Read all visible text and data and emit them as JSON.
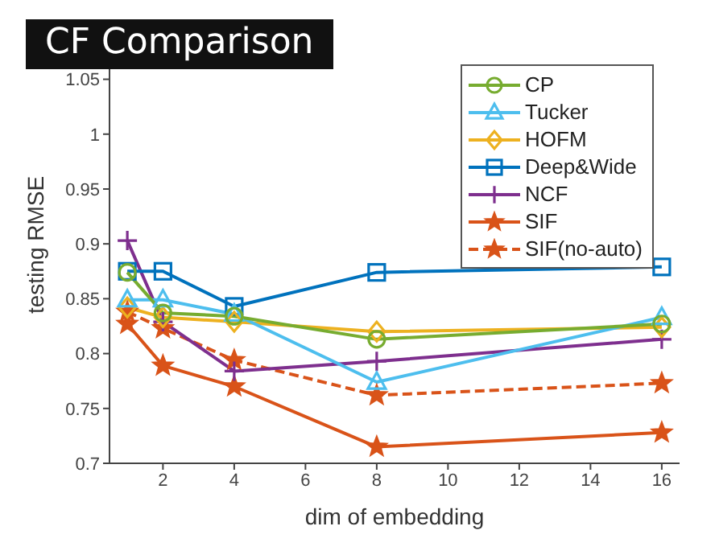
{
  "chart_data": {
    "type": "line",
    "title": "CF Comparison",
    "xlabel": "dim of embedding",
    "ylabel": "testing RMSE",
    "x": [
      1,
      2,
      4,
      8,
      16
    ],
    "xlim": [
      0.5,
      16.5
    ],
    "xticks": [
      2,
      4,
      6,
      8,
      10,
      12,
      14,
      16
    ],
    "ylim": [
      0.7,
      1.09
    ],
    "yticks": [
      0.7,
      0.75,
      0.8,
      0.85,
      0.9,
      0.95,
      1,
      1.05
    ],
    "grid": false,
    "legend": "top right",
    "series": [
      {
        "name": "CP",
        "color": "#77ac30",
        "marker": "circle",
        "line_style": "solid",
        "values": [
          0.874,
          0.837,
          0.834,
          0.813,
          0.827
        ]
      },
      {
        "name": "Tucker",
        "color": "#4dbeee",
        "marker": "triangle",
        "line_style": "solid",
        "values": [
          0.849,
          0.849,
          0.836,
          0.774,
          0.833
        ]
      },
      {
        "name": "HOFM",
        "color": "#edb120",
        "marker": "diamond",
        "line_style": "solid",
        "values": [
          0.842,
          0.833,
          0.829,
          0.82,
          0.824
        ]
      },
      {
        "name": "Deep&Wide",
        "color": "#0072bd",
        "marker": "square",
        "line_style": "solid",
        "values": [
          0.875,
          0.875,
          0.843,
          0.874,
          0.879
        ]
      },
      {
        "name": "NCF",
        "color": "#7e2f8e",
        "marker": "cross",
        "line_style": "solid",
        "values": [
          0.903,
          0.829,
          0.784,
          0.793,
          0.813
        ]
      },
      {
        "name": "SIF",
        "color": "#d95319",
        "marker": "star",
        "line_style": "solid",
        "values": [
          0.827,
          0.789,
          0.77,
          0.715,
          0.728
        ]
      },
      {
        "name": "SIF(no-auto)",
        "color": "#d95319",
        "marker": "star",
        "line_style": "dashed",
        "values": [
          0.838,
          0.823,
          0.794,
          0.762,
          0.773
        ]
      }
    ]
  }
}
